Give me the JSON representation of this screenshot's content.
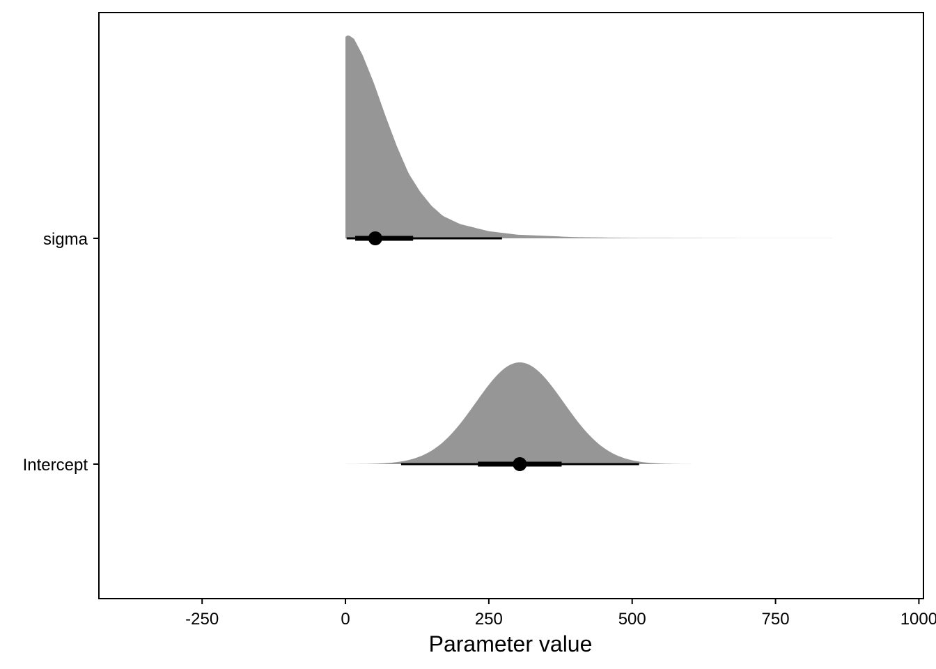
{
  "chart_data": {
    "type": "halfeye",
    "title": "",
    "xlabel": "Parameter value",
    "ylabel": "",
    "xlim": [
      -430,
      1008
    ],
    "x_ticks": [
      -250,
      0,
      250,
      500,
      750,
      1000
    ],
    "x_tick_labels": [
      "-250",
      "0",
      "250",
      "500",
      "750",
      "1000"
    ],
    "categories": [
      "sigma",
      "Intercept"
    ],
    "grid": false,
    "legend": "none",
    "colors": {
      "density_fill": "#969696",
      "interval": "#000000",
      "panel_border": "#000000"
    },
    "series": [
      {
        "name": "sigma",
        "distribution": "right-skewed, truncated at 0",
        "density_range": [
          0,
          970
        ],
        "point_estimate": 52,
        "interval_66": [
          17,
          118
        ],
        "interval_95": [
          2,
          273
        ],
        "density_points": [
          [
            0,
            0.99
          ],
          [
            5,
            1.0
          ],
          [
            15,
            0.98
          ],
          [
            30,
            0.9
          ],
          [
            50,
            0.76
          ],
          [
            70,
            0.6
          ],
          [
            90,
            0.45
          ],
          [
            110,
            0.32
          ],
          [
            130,
            0.23
          ],
          [
            150,
            0.16
          ],
          [
            170,
            0.11
          ],
          [
            200,
            0.07
          ],
          [
            250,
            0.035
          ],
          [
            300,
            0.018
          ],
          [
            400,
            0.006
          ],
          [
            500,
            0.002
          ],
          [
            700,
            0.0005
          ],
          [
            970,
            0
          ]
        ]
      },
      {
        "name": "Intercept",
        "distribution": "bell-shaped, slight tails",
        "density_range": [
          -365,
          970
        ],
        "point_estimate": 304,
        "interval_66": [
          231,
          377
        ],
        "interval_95": [
          97,
          512
        ],
        "mode": 304,
        "relative_peak_height": 0.5
      }
    ]
  }
}
